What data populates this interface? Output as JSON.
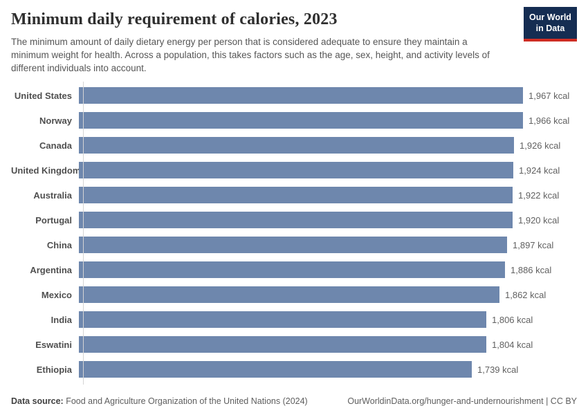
{
  "header": {
    "title": "Minimum daily requirement of calories, 2023",
    "subtitle": "The minimum amount of daily dietary energy per person that is considered adequate to ensure they maintain a minimum weight for health. Across a population, this takes factors such as the age, sex, height, and activity levels of different individuals into account.",
    "logo": {
      "line1": "Our World",
      "line2": "in Data"
    }
  },
  "chart_data": {
    "type": "bar",
    "orientation": "horizontal",
    "title": "Minimum daily requirement of calories, 2023",
    "categories": [
      "United States",
      "Norway",
      "Canada",
      "United Kingdom",
      "Australia",
      "Portugal",
      "China",
      "Argentina",
      "Mexico",
      "India",
      "Eswatini",
      "Ethiopia"
    ],
    "values": [
      1967,
      1966,
      1926,
      1924,
      1922,
      1920,
      1897,
      1886,
      1862,
      1806,
      1804,
      1739
    ],
    "value_labels": [
      "1,967 kcal",
      "1,966 kcal",
      "1,926 kcal",
      "1,924 kcal",
      "1,922 kcal",
      "1,920 kcal",
      "1,897 kcal",
      "1,886 kcal",
      "1,862 kcal",
      "1,806 kcal",
      "1,804 kcal",
      "1,739 kcal"
    ],
    "unit": "kcal",
    "xlabel": "",
    "ylabel": "",
    "xlim": [
      0,
      1967
    ],
    "grid": false,
    "legend": false,
    "bar_color": "#6e87ad"
  },
  "footer": {
    "source_label": "Data source:",
    "source_text": " Food and Agriculture Organization of the United Nations (2024)",
    "link_text": "OurWorldinData.org/hunger-and-undernourishment | CC BY"
  },
  "colors": {
    "bar": "#6e87ad",
    "axis": "#d4d4d4",
    "logo_navy": "#152d52",
    "logo_red": "#cf2d23"
  }
}
